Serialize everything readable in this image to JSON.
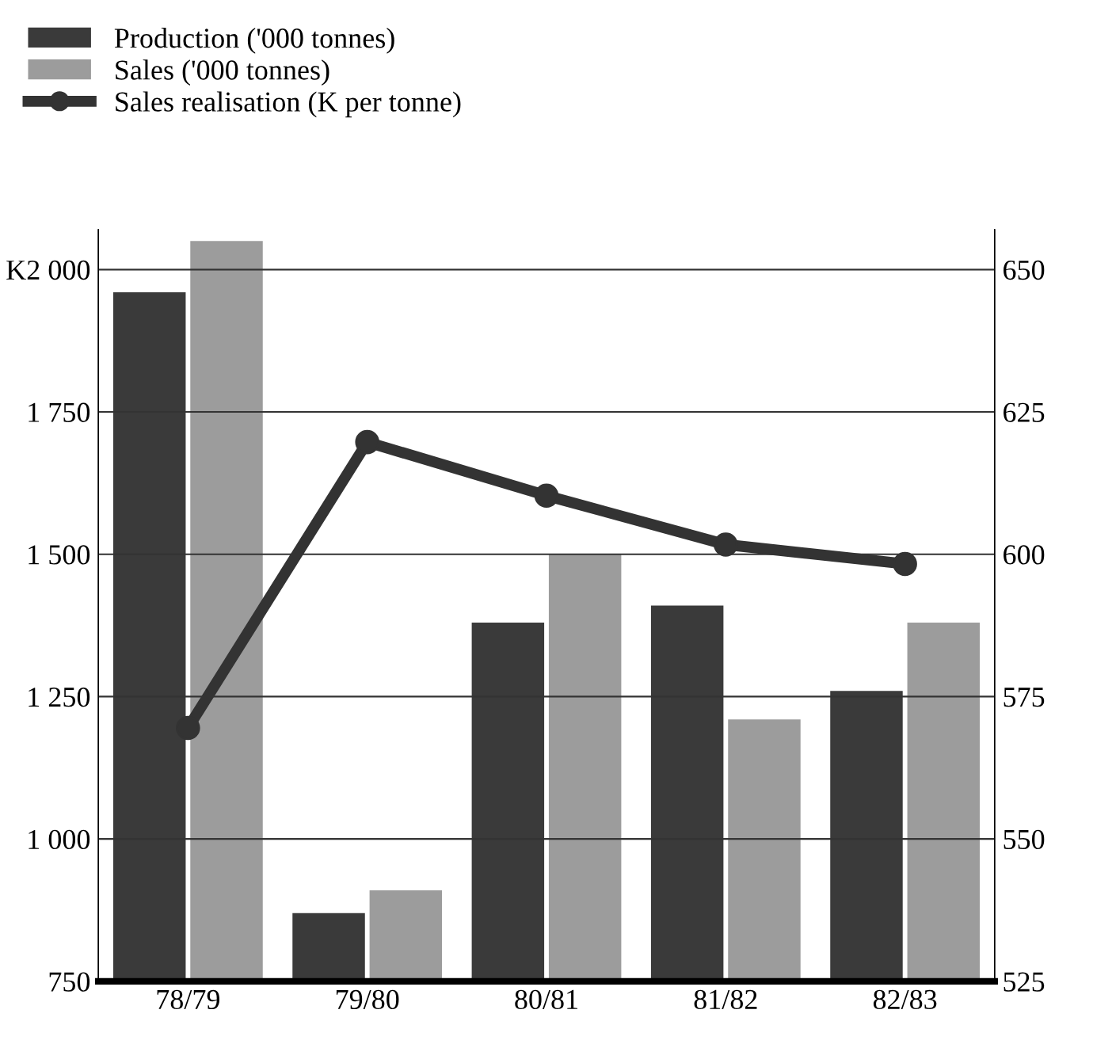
{
  "chart_data": {
    "type": "bar",
    "categories": [
      "78/79",
      "79/80",
      "80/81",
      "81/82",
      "82/83"
    ],
    "series": [
      {
        "name": "Production ('000 tonnes)",
        "color": "#3a3a3a",
        "axis": "y2",
        "values": [
          646,
          537,
          588,
          591,
          576
        ]
      },
      {
        "name": "Sales ('000 tonnes)",
        "color": "#9c9c9c",
        "axis": "y2",
        "values": [
          655,
          541,
          600,
          571,
          588
        ]
      },
      {
        "name": "Sales realisation (K per tonne)",
        "type": "line",
        "color": "#333333",
        "axis": "y",
        "marker": "circle",
        "values": [
          1195,
          1697,
          1603,
          1517,
          1483
        ]
      }
    ],
    "ylim": [
      750,
      2070
    ],
    "yticks": [
      {
        "value": 750,
        "label": "750"
      },
      {
        "value": 1000,
        "label": "1 000"
      },
      {
        "value": 1250,
        "label": "1 250"
      },
      {
        "value": 1500,
        "label": "1 500"
      },
      {
        "value": 1750,
        "label": "1 750"
      },
      {
        "value": 2000,
        "label": "K2 000"
      }
    ],
    "y2lim": [
      525,
      657
    ],
    "y2ticks": [
      525,
      550,
      575,
      600,
      625,
      650
    ],
    "grid": "y",
    "legend": "top left"
  }
}
